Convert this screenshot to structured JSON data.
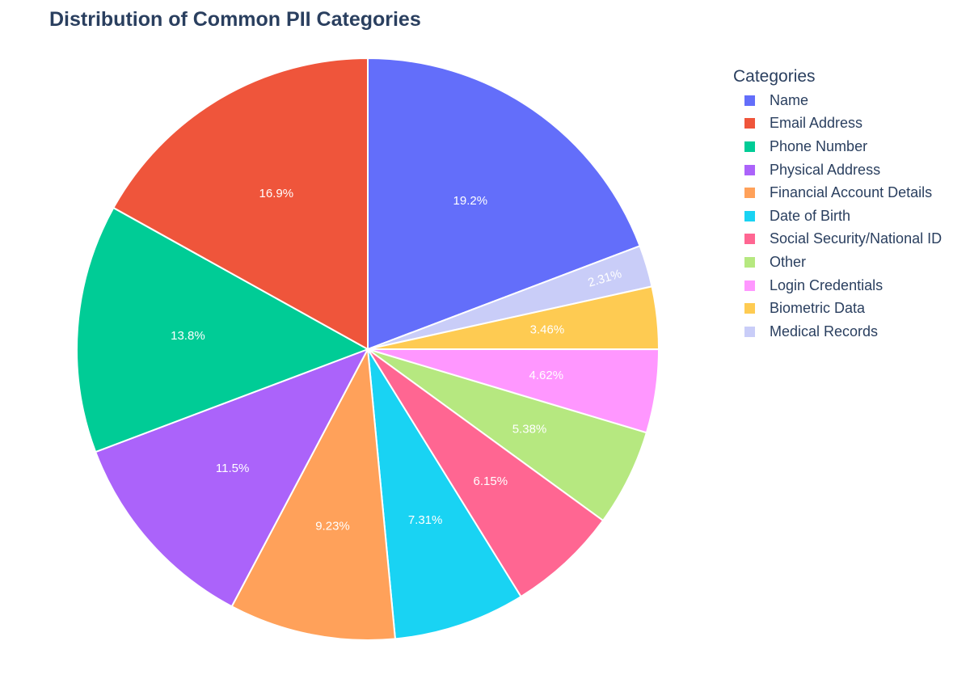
{
  "chart_data": {
    "type": "pie",
    "title": "Distribution of Common PII Categories",
    "legend_title": "Categories",
    "legend_position": "right",
    "direction": "clockwise",
    "sort": "descending",
    "slices": [
      {
        "label": "Name",
        "value": 19.2,
        "text": "19.2%",
        "color": "#636EFA"
      },
      {
        "label": "Email Address",
        "value": 16.9,
        "text": "16.9%",
        "color": "#EF553B"
      },
      {
        "label": "Phone Number",
        "value": 13.8,
        "text": "13.8%",
        "color": "#00CC96"
      },
      {
        "label": "Physical Address",
        "value": 11.5,
        "text": "11.5%",
        "color": "#AB63FA"
      },
      {
        "label": "Financial Account Details",
        "value": 9.23,
        "text": "9.23%",
        "color": "#FFA15A"
      },
      {
        "label": "Date of Birth",
        "value": 7.31,
        "text": "7.31%",
        "color": "#19D3F3"
      },
      {
        "label": "Social Security/National ID",
        "value": 6.15,
        "text": "6.15%",
        "color": "#FF6692"
      },
      {
        "label": "Other",
        "value": 5.38,
        "text": "5.38%",
        "color": "#B6E880"
      },
      {
        "label": "Login Credentials",
        "value": 4.62,
        "text": "4.62%",
        "color": "#FF97FF"
      },
      {
        "label": "Biometric Data",
        "value": 3.46,
        "text": "3.46%",
        "color": "#FECB52"
      },
      {
        "label": "Medical Records",
        "value": 2.31,
        "text": "2.31%",
        "color": "#C9CDF8"
      }
    ],
    "slice_order_on_pie": [
      "Name",
      "Medical Records",
      "Biometric Data",
      "Login Credentials",
      "Other",
      "Social Security/National ID",
      "Date of Birth",
      "Financial Account Details",
      "Physical Address",
      "Phone Number",
      "Email Address"
    ]
  }
}
